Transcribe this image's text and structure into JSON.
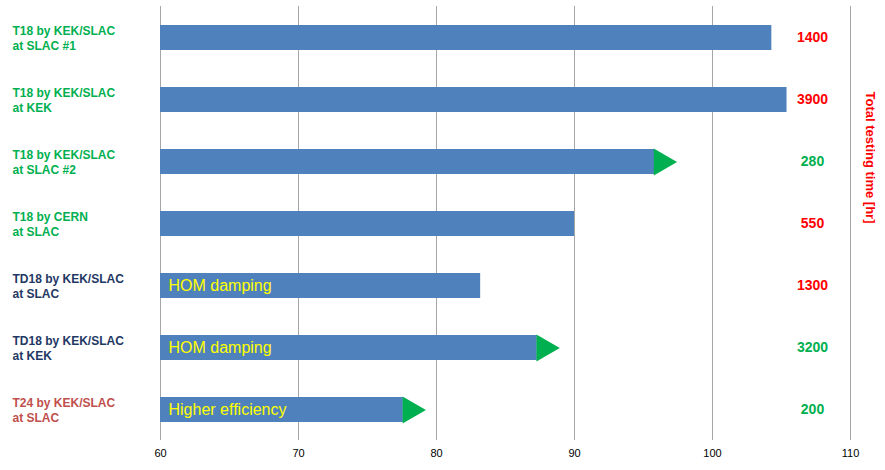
{
  "chart_data": {
    "type": "bar",
    "orientation": "horizontal",
    "categories": [
      "T18 by KEK/SLAC\nat SLAC #1",
      "T18 by KEK/SLAC\nat KEK",
      "T18 by KEK/SLAC\nat SLAC #2",
      "T18 by CERN\nat SLAC",
      "TD18 by KEK/SLAC\nat SLAC",
      "TD18 by KEK/SLAC\nat KEK",
      "T24 by KEK/SLAC\nat SLAC"
    ],
    "category_colors": [
      "#00b050",
      "#00b050",
      "#00b050",
      "#00b050",
      "#1f3864",
      "#1f3864",
      "#c0504d"
    ],
    "values": [
      104.3,
      105.4,
      95.8,
      90,
      83.2,
      87.3,
      77.6
    ],
    "color": "#4f81bd",
    "bar_labels": [
      null,
      null,
      null,
      null,
      "HOM damping",
      "HOM damping",
      "Higher efficiency"
    ],
    "ongoing": [
      false,
      false,
      true,
      false,
      false,
      true,
      true
    ],
    "ongoing_color": "#00b050",
    "testing_time": [
      1400,
      3900,
      280,
      550,
      1300,
      3200,
      200
    ],
    "testing_time_colors": [
      "#ff0000",
      "#ff0000",
      "#00b050",
      "#ff0000",
      "#ff0000",
      "#00b050",
      "#00b050"
    ],
    "testing_time_label": "Total testing time [hr]",
    "xlim": [
      60,
      110
    ],
    "xticks": [
      60,
      70,
      80,
      90,
      100,
      110
    ],
    "grid": true
  }
}
